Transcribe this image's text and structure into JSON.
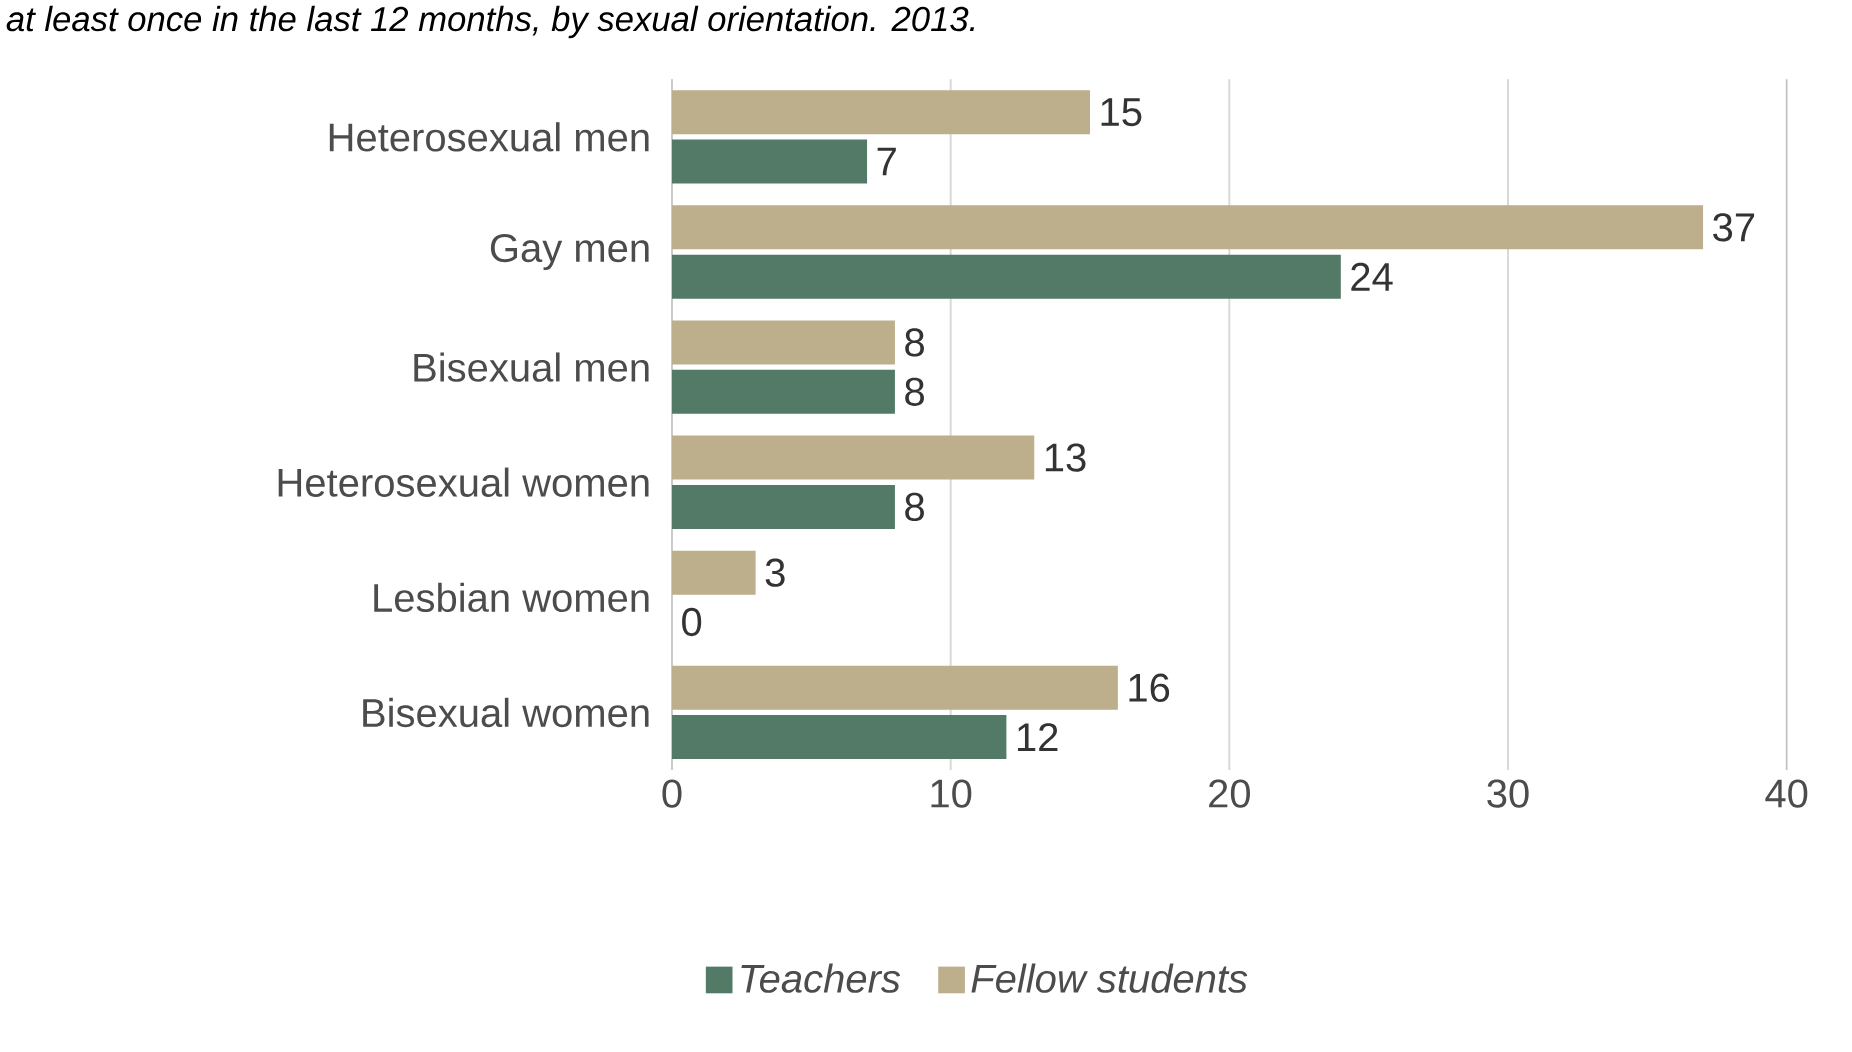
{
  "chart_data": {
    "type": "bar",
    "orientation": "horizontal",
    "title": "at least once in the last 12 months, by sexual orientation. 2013.",
    "categories": [
      "Heterosexual men",
      "Gay men",
      "Bisexual men",
      "Heterosexual women",
      "Lesbian women",
      "Bisexual women"
    ],
    "series": [
      {
        "name": "Teachers",
        "color": "#527a66",
        "values": [
          7,
          24,
          8,
          8,
          0,
          12
        ]
      },
      {
        "name": "Fellow students",
        "color": "#bdae8c",
        "values": [
          15,
          37,
          8,
          13,
          3,
          16
        ]
      }
    ],
    "xlim": [
      0,
      40
    ],
    "xticks": [
      0,
      10,
      20,
      30,
      40
    ],
    "grid": "x",
    "legend": "bottom",
    "data_labels": true
  }
}
